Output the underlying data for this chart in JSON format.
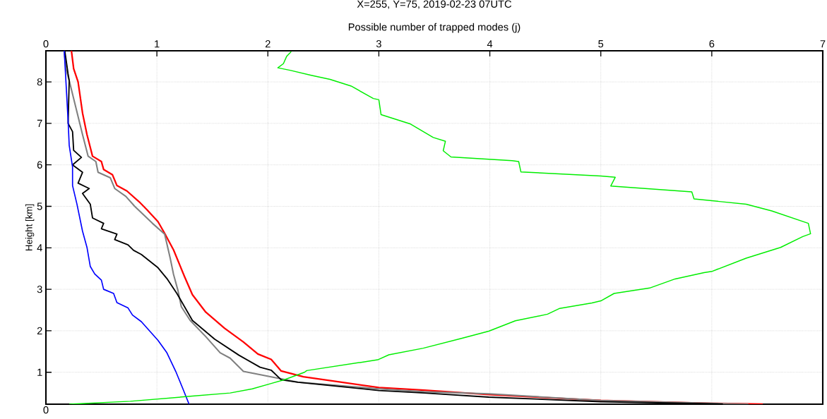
{
  "chart_data": {
    "type": "line",
    "title": "X=255, Y=75, 2019-02-23 07UTC",
    "xlabel": "Possible number of trapped modes (j)",
    "ylabel": "Height [km]",
    "xlim": [
      0,
      7
    ],
    "xticks": [
      0,
      1,
      2,
      3,
      4,
      5,
      6,
      7
    ],
    "ylim": [
      0.23,
      8.75
    ],
    "yticks": [
      1,
      2,
      3,
      4,
      5,
      6,
      7,
      8
    ],
    "annotations": [
      "0"
    ],
    "grid": true,
    "marker": "none",
    "line_style": "solid",
    "series": [
      {
        "color": "#ff0000",
        "x": [
          0.23,
          0.25,
          0.29,
          0.33,
          0.37,
          0.42,
          0.5,
          0.52,
          0.6,
          0.64,
          0.73,
          0.84,
          0.91,
          1.01,
          1.08,
          1.15,
          1.25,
          1.32,
          1.44,
          1.61,
          1.78,
          1.91,
          2.03,
          2.12,
          2.32,
          3.0,
          3.41,
          3.99,
          5.0,
          6.0,
          6.46
        ],
        "values": [
          8.75,
          8.32,
          8.0,
          7.25,
          6.73,
          6.21,
          6.08,
          5.89,
          5.76,
          5.5,
          5.37,
          5.11,
          4.92,
          4.63,
          4.3,
          3.95,
          3.3,
          2.87,
          2.45,
          2.06,
          1.73,
          1.44,
          1.31,
          1.03,
          0.89,
          0.63,
          0.57,
          0.46,
          0.32,
          0.25,
          0.23
        ]
      },
      {
        "color": "#808080",
        "x": [
          0.165,
          0.18,
          0.21,
          0.27,
          0.33,
          0.38,
          0.45,
          0.47,
          0.58,
          0.62,
          0.72,
          0.8,
          0.96,
          1.07,
          1.12,
          1.15,
          1.19,
          1.22,
          1.3,
          1.44,
          1.57,
          1.66,
          1.78,
          2.03,
          2.27,
          3.0,
          3.41,
          3.99,
          5.0,
          6.0,
          6.33
        ],
        "values": [
          8.75,
          8.32,
          8.03,
          7.38,
          6.73,
          6.21,
          6.08,
          5.82,
          5.69,
          5.43,
          5.24,
          5.0,
          4.59,
          4.33,
          3.75,
          3.36,
          2.97,
          2.58,
          2.25,
          1.86,
          1.47,
          1.34,
          1.02,
          0.89,
          0.76,
          0.6,
          0.53,
          0.48,
          0.32,
          0.25,
          0.23
        ]
      },
      {
        "color": "#000000",
        "x": [
          0.17,
          0.2,
          0.21,
          0.2,
          0.24,
          0.25,
          0.32,
          0.24,
          0.33,
          0.29,
          0.39,
          0.33,
          0.4,
          0.42,
          0.52,
          0.5,
          0.64,
          0.62,
          0.74,
          0.79,
          0.86,
          1.01,
          1.09,
          1.18,
          1.32,
          1.52,
          1.74,
          1.93,
          2.03,
          2.12,
          2.27,
          3.0,
          3.41,
          3.99,
          5.0,
          6.0,
          6.1
        ],
        "values": [
          8.75,
          8.19,
          8.03,
          7.0,
          6.8,
          6.35,
          6.18,
          6.0,
          5.82,
          5.56,
          5.43,
          5.31,
          5.05,
          4.72,
          4.59,
          4.46,
          4.33,
          4.2,
          4.07,
          3.94,
          3.84,
          3.52,
          3.26,
          2.9,
          2.25,
          1.8,
          1.41,
          1.12,
          1.05,
          0.82,
          0.76,
          0.56,
          0.5,
          0.4,
          0.29,
          0.24,
          0.23
        ]
      },
      {
        "color": "#0000ff",
        "x": [
          0.165,
          0.18,
          0.2,
          0.21,
          0.24,
          0.24,
          0.28,
          0.33,
          0.37,
          0.4,
          0.44,
          0.5,
          0.52,
          0.61,
          0.64,
          0.74,
          0.78,
          0.86,
          1.01,
          1.09,
          1.17,
          1.23,
          1.29
        ],
        "values": [
          8.75,
          8.03,
          7.06,
          6.47,
          5.95,
          5.5,
          5.05,
          4.4,
          4.01,
          3.55,
          3.37,
          3.22,
          3.0,
          2.9,
          2.68,
          2.55,
          2.38,
          2.22,
          1.77,
          1.47,
          1.02,
          0.63,
          0.23
        ]
      },
      {
        "color": "#00ee00",
        "x": [
          0.21,
          0.76,
          1.3,
          1.66,
          1.86,
          2.03,
          2.15,
          2.33,
          2.35,
          2.99,
          3.09,
          3.4,
          3.75,
          3.99,
          4.23,
          4.52,
          4.63,
          4.92,
          5.0,
          5.12,
          5.44,
          5.67,
          5.93,
          6.0,
          6.31,
          6.62,
          6.82,
          6.89,
          6.87,
          6.54,
          6.31,
          5.84,
          5.82,
          5.09,
          5.13,
          5.0,
          4.28,
          4.26,
          4.2,
          3.65,
          3.58,
          3.6,
          3.49,
          3.28,
          3.02,
          3.0,
          2.95,
          2.75,
          2.56,
          2.39,
          2.2,
          2.09,
          2.14,
          2.17,
          2.21
        ],
        "values": [
          0.23,
          0.3,
          0.42,
          0.5,
          0.6,
          0.73,
          0.82,
          1.0,
          1.04,
          1.3,
          1.42,
          1.58,
          1.82,
          1.99,
          2.24,
          2.4,
          2.54,
          2.67,
          2.72,
          2.9,
          3.03,
          3.25,
          3.4,
          3.43,
          3.75,
          4.01,
          4.27,
          4.34,
          4.59,
          4.89,
          5.05,
          5.18,
          5.35,
          5.49,
          5.7,
          5.73,
          5.83,
          6.08,
          6.1,
          6.19,
          6.34,
          6.57,
          6.66,
          6.99,
          7.21,
          7.57,
          7.6,
          7.9,
          8.06,
          8.16,
          8.28,
          8.34,
          8.44,
          8.62,
          8.73
        ]
      }
    ]
  }
}
